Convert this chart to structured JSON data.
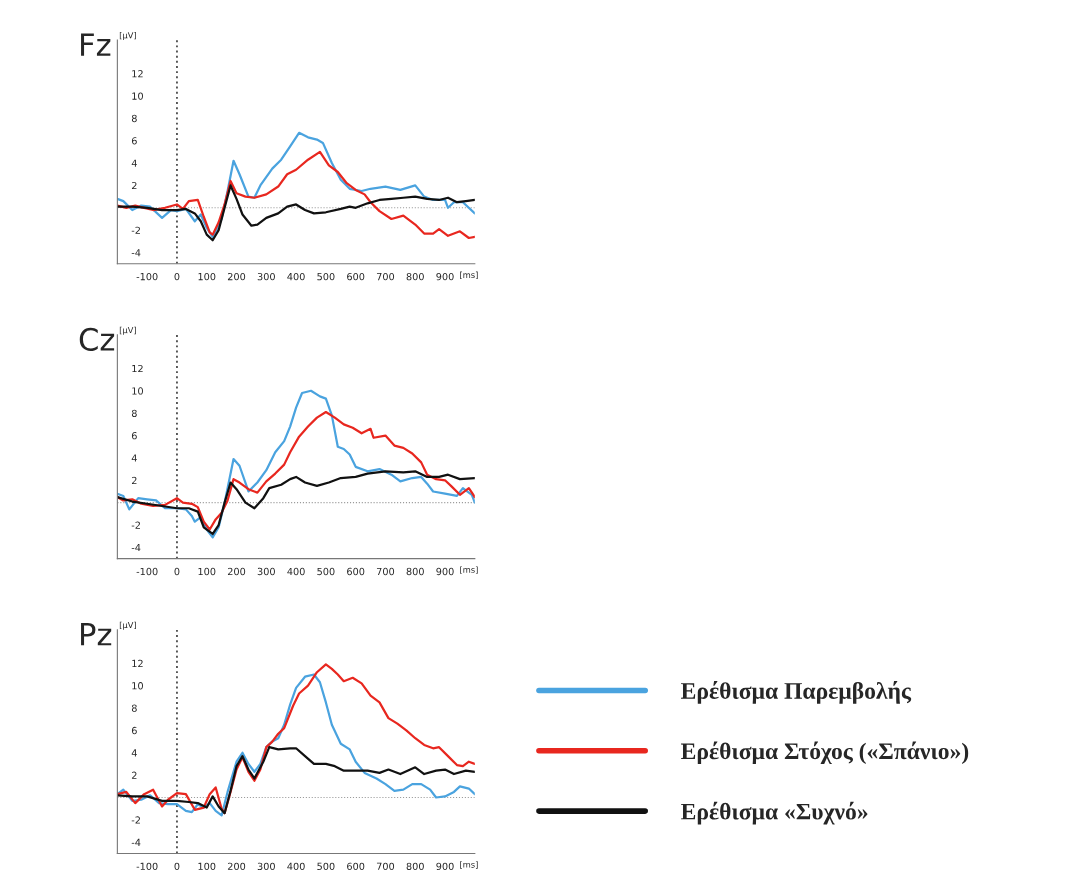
{
  "chart_data": [
    {
      "type": "line",
      "title": "Fz",
      "ylabel": "[µV]",
      "xlabel": "[ms]",
      "xlim": [
        -200,
        1000
      ],
      "ylim": [
        -5,
        15
      ],
      "xticks": [
        -100,
        0,
        100,
        200,
        300,
        400,
        500,
        600,
        700,
        800,
        900
      ],
      "yticks": [
        -4,
        -2,
        2,
        4,
        6,
        8,
        10,
        12
      ],
      "grid": false,
      "legend": false,
      "ref_lines": [
        {
          "axis": "y",
          "value": 0,
          "color": "#9a9a9a",
          "line_style": "dotted"
        },
        {
          "axis": "x",
          "value": 0,
          "color": "#555555",
          "line_style": "dotted"
        }
      ],
      "series": [
        {
          "color": "#4aa3df",
          "x": [
            -200,
            -180,
            -150,
            -120,
            -90,
            -50,
            -20,
            0,
            30,
            60,
            80,
            100,
            120,
            150,
            170,
            190,
            210,
            240,
            260,
            280,
            320,
            350,
            380,
            410,
            440,
            470,
            490,
            520,
            550,
            580,
            620,
            650,
            700,
            750,
            800,
            830,
            860,
            900,
            910,
            930,
            960,
            1000
          ],
          "values": [
            0.8,
            0.6,
            -0.2,
            0.2,
            0.1,
            -0.9,
            -0.2,
            -0.3,
            -0.1,
            -1.2,
            -0.6,
            -1.8,
            -2.6,
            -1.0,
            1.5,
            4.2,
            3.0,
            1.0,
            0.9,
            2.0,
            3.5,
            4.3,
            5.5,
            6.7,
            6.3,
            6.1,
            5.8,
            4.0,
            2.5,
            1.7,
            1.5,
            1.7,
            1.9,
            1.6,
            2.0,
            1.0,
            0.7,
            0.7,
            0.0,
            0.5,
            0.5,
            -0.5
          ]
        },
        {
          "color": "#e8271f",
          "x": [
            -200,
            -170,
            -140,
            -110,
            -80,
            -40,
            0,
            20,
            40,
            70,
            90,
            110,
            120,
            140,
            160,
            180,
            200,
            230,
            260,
            300,
            340,
            370,
            400,
            440,
            480,
            510,
            540,
            570,
            600,
            630,
            650,
            680,
            720,
            760,
            800,
            830,
            860,
            880,
            910,
            950,
            980,
            1000
          ],
          "values": [
            0.2,
            0.0,
            0.2,
            0.0,
            -0.2,
            0.0,
            0.3,
            -0.1,
            0.6,
            0.7,
            -0.8,
            -2.2,
            -2.4,
            -1.3,
            0.3,
            2.4,
            1.3,
            1.0,
            0.9,
            1.2,
            1.9,
            3.0,
            3.4,
            4.3,
            5.0,
            3.8,
            3.2,
            2.2,
            1.6,
            1.2,
            0.5,
            -0.3,
            -1.0,
            -0.7,
            -1.5,
            -2.3,
            -2.3,
            -1.9,
            -2.5,
            -2.1,
            -2.7,
            -2.6
          ]
        },
        {
          "color": "#111111",
          "x": [
            -200,
            -150,
            -100,
            -50,
            0,
            30,
            60,
            80,
            100,
            120,
            140,
            160,
            180,
            200,
            220,
            250,
            270,
            300,
            340,
            370,
            400,
            430,
            460,
            500,
            550,
            580,
            600,
            640,
            680,
            720,
            760,
            800,
            840,
            880,
            910,
            940,
            970,
            1000
          ],
          "values": [
            0.1,
            0.1,
            0.0,
            -0.2,
            -0.2,
            -0.1,
            -0.5,
            -1.2,
            -2.4,
            -2.9,
            -2.0,
            0.0,
            2.0,
            0.8,
            -0.6,
            -1.6,
            -1.5,
            -0.9,
            -0.5,
            0.1,
            0.3,
            -0.2,
            -0.5,
            -0.4,
            -0.1,
            0.1,
            0.0,
            0.4,
            0.7,
            0.8,
            0.9,
            1.0,
            0.8,
            0.7,
            0.9,
            0.5,
            0.6,
            0.7
          ]
        }
      ]
    },
    {
      "type": "line",
      "title": "Cz",
      "ylabel": "[µV]",
      "xlabel": "[ms]",
      "xlim": [
        -200,
        1000
      ],
      "ylim": [
        -5,
        15
      ],
      "xticks": [
        -100,
        0,
        100,
        200,
        300,
        400,
        500,
        600,
        700,
        800,
        900
      ],
      "yticks": [
        -4,
        -2,
        2,
        4,
        6,
        8,
        10,
        12
      ],
      "grid": false,
      "legend": false,
      "ref_lines": [
        {
          "axis": "y",
          "value": 0,
          "color": "#9a9a9a",
          "line_style": "dotted"
        },
        {
          "axis": "x",
          "value": 0,
          "color": "#555555",
          "line_style": "dotted"
        }
      ],
      "series": [
        {
          "color": "#4aa3df",
          "x": [
            -200,
            -180,
            -160,
            -130,
            -100,
            -70,
            -40,
            0,
            30,
            50,
            60,
            80,
            100,
            120,
            140,
            160,
            190,
            210,
            240,
            270,
            300,
            330,
            360,
            380,
            400,
            420,
            450,
            480,
            500,
            520,
            540,
            560,
            580,
            600,
            640,
            680,
            720,
            750,
            790,
            820,
            840,
            860,
            900,
            940,
            960,
            990,
            1000
          ],
          "values": [
            0.8,
            0.6,
            -0.6,
            0.4,
            0.3,
            0.2,
            -0.5,
            -0.5,
            -0.6,
            -1.2,
            -1.7,
            -1.3,
            -2.4,
            -3.1,
            -2.2,
            0.0,
            3.9,
            3.3,
            1.0,
            1.8,
            2.9,
            4.5,
            5.5,
            6.8,
            8.5,
            9.8,
            10.0,
            9.5,
            9.3,
            7.8,
            5.0,
            4.8,
            4.3,
            3.2,
            2.8,
            3.0,
            2.5,
            1.9,
            2.2,
            2.3,
            1.7,
            1.0,
            0.8,
            0.6,
            1.3,
            0.7,
            0.0
          ]
        },
        {
          "color": "#e8271f",
          "x": [
            -200,
            -180,
            -150,
            -120,
            -80,
            -40,
            0,
            20,
            50,
            70,
            90,
            110,
            130,
            150,
            170,
            190,
            210,
            240,
            270,
            300,
            330,
            360,
            380,
            410,
            440,
            470,
            500,
            530,
            560,
            590,
            620,
            650,
            660,
            700,
            730,
            760,
            790,
            820,
            840,
            870,
            900,
            920,
            950,
            980,
            1000
          ],
          "values": [
            0.5,
            0.2,
            0.3,
            -0.1,
            -0.3,
            -0.2,
            0.4,
            0.0,
            -0.1,
            -0.4,
            -1.7,
            -2.4,
            -1.5,
            -0.9,
            0.2,
            2.1,
            1.8,
            1.2,
            0.9,
            1.9,
            2.6,
            3.4,
            4.5,
            5.9,
            6.8,
            7.6,
            8.1,
            7.6,
            7.0,
            6.7,
            6.2,
            6.6,
            5.8,
            6.0,
            5.1,
            4.9,
            4.4,
            3.6,
            2.5,
            2.1,
            2.0,
            1.5,
            0.7,
            1.3,
            0.5
          ]
        },
        {
          "color": "#111111",
          "x": [
            -200,
            -150,
            -100,
            -50,
            0,
            40,
            70,
            90,
            120,
            140,
            160,
            180,
            200,
            230,
            260,
            290,
            310,
            350,
            380,
            400,
            430,
            470,
            510,
            550,
            600,
            640,
            700,
            760,
            800,
            840,
            880,
            910,
            950,
            1000
          ],
          "values": [
            0.5,
            0.1,
            -0.1,
            -0.3,
            -0.5,
            -0.5,
            -0.8,
            -2.2,
            -2.8,
            -2.0,
            0.0,
            1.8,
            1.2,
            0.0,
            -0.5,
            0.4,
            1.3,
            1.6,
            2.1,
            2.3,
            1.8,
            1.5,
            1.8,
            2.2,
            2.3,
            2.6,
            2.8,
            2.7,
            2.8,
            2.3,
            2.3,
            2.5,
            2.1,
            2.2
          ]
        }
      ]
    },
    {
      "type": "line",
      "title": "Pz",
      "ylabel": "[µV]",
      "xlabel": "[ms]",
      "xlim": [
        -200,
        1000
      ],
      "ylim": [
        -5,
        15
      ],
      "xticks": [
        -100,
        0,
        100,
        200,
        300,
        400,
        500,
        600,
        700,
        800,
        900
      ],
      "yticks": [
        -4,
        -2,
        2,
        4,
        6,
        8,
        10,
        12
      ],
      "grid": false,
      "legend": "right",
      "ref_lines": [
        {
          "axis": "y",
          "value": 0,
          "color": "#9a9a9a",
          "line_style": "dotted"
        },
        {
          "axis": "x",
          "value": 0,
          "color": "#555555",
          "line_style": "dotted"
        }
      ],
      "series": [
        {
          "name": "Ερέθισμα Παρεμβολής",
          "color": "#4aa3df",
          "x": [
            -200,
            -180,
            -150,
            -120,
            -90,
            -60,
            -30,
            0,
            30,
            50,
            70,
            90,
            110,
            130,
            150,
            170,
            200,
            220,
            240,
            260,
            280,
            300,
            320,
            340,
            360,
            380,
            400,
            430,
            460,
            480,
            500,
            520,
            550,
            580,
            600,
            630,
            670,
            700,
            730,
            760,
            790,
            820,
            850,
            870,
            900,
            930,
            950,
            980,
            1000
          ],
          "values": [
            0.3,
            0.7,
            -0.3,
            -0.2,
            0.2,
            -0.5,
            -0.6,
            -0.6,
            -1.2,
            -1.3,
            -0.6,
            -0.9,
            -0.5,
            -1.2,
            -1.6,
            0.5,
            3.2,
            4.0,
            3.0,
            2.3,
            3.0,
            4.5,
            5.0,
            5.3,
            6.5,
            8.3,
            9.8,
            10.8,
            11.0,
            10.3,
            8.5,
            6.5,
            4.8,
            4.3,
            3.2,
            2.2,
            1.7,
            1.2,
            0.6,
            0.7,
            1.2,
            1.2,
            0.7,
            0.0,
            0.1,
            0.5,
            1.0,
            0.8,
            0.3
          ]
        },
        {
          "name": "Ερέθισμα Στόχος («Σπάνιο»)",
          "color": "#e8271f",
          "x": [
            -200,
            -170,
            -140,
            -110,
            -80,
            -50,
            -30,
            0,
            30,
            60,
            90,
            110,
            130,
            150,
            160,
            180,
            200,
            220,
            240,
            260,
            280,
            300,
            320,
            340,
            360,
            390,
            410,
            440,
            470,
            500,
            520,
            540,
            560,
            590,
            620,
            650,
            680,
            710,
            740,
            770,
            800,
            830,
            860,
            880,
            910,
            940,
            960,
            980,
            1000
          ],
          "values": [
            0.3,
            0.5,
            -0.5,
            0.3,
            0.7,
            -0.8,
            -0.2,
            0.4,
            0.3,
            -1.1,
            -0.9,
            0.3,
            0.9,
            -1.0,
            -1.4,
            0.5,
            2.5,
            3.6,
            2.3,
            1.5,
            2.5,
            4.5,
            5.0,
            5.7,
            6.2,
            8.2,
            9.3,
            10.0,
            11.2,
            11.9,
            11.5,
            11.0,
            10.4,
            10.7,
            10.2,
            9.1,
            8.5,
            7.1,
            6.6,
            6.0,
            5.3,
            4.7,
            4.4,
            4.5,
            3.7,
            2.9,
            2.8,
            3.2,
            3.0
          ]
        },
        {
          "name": "Ερέθισμα «Συχνό»",
          "color": "#111111",
          "x": [
            -200,
            -150,
            -100,
            -50,
            0,
            40,
            70,
            100,
            120,
            140,
            160,
            180,
            200,
            220,
            240,
            260,
            290,
            310,
            340,
            380,
            400,
            430,
            460,
            500,
            530,
            560,
            600,
            640,
            680,
            710,
            750,
            800,
            830,
            870,
            900,
            930,
            970,
            1000
          ],
          "values": [
            0.2,
            0.1,
            0.1,
            -0.3,
            -0.3,
            -0.4,
            -0.5,
            -0.9,
            0.1,
            -0.8,
            -1.4,
            0.6,
            2.8,
            3.7,
            2.5,
            1.7,
            3.2,
            4.5,
            4.3,
            4.4,
            4.4,
            3.7,
            3.0,
            3.0,
            2.8,
            2.4,
            2.4,
            2.4,
            2.2,
            2.5,
            2.1,
            2.7,
            2.1,
            2.4,
            2.5,
            2.1,
            2.4,
            2.3
          ]
        }
      ]
    }
  ]
}
